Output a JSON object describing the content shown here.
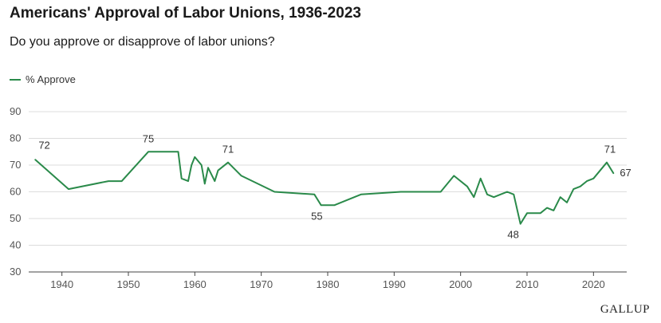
{
  "title": "Americans' Approval of Labor Unions, 1936-2023",
  "subtitle": "Do you approve or disapprove of labor unions?",
  "source": "GALLUP",
  "chart_data": {
    "type": "line",
    "xlim": [
      1935,
      2025
    ],
    "ylim": [
      30,
      90
    ],
    "xticks": [
      1940,
      1950,
      1960,
      1970,
      1980,
      1990,
      2000,
      2010,
      2020
    ],
    "yticks": [
      30,
      40,
      50,
      60,
      70,
      80,
      90
    ],
    "grid": true,
    "legend_placement": "top-left",
    "color": "#2a8a4a",
    "series": [
      {
        "name": "% Approve",
        "x": [
          1936,
          1941,
          1947,
          1949,
          1953,
          1957,
          1957.5,
          1958,
          1959,
          1959.5,
          1960,
          1961,
          1961.5,
          1962,
          1963,
          1963.5,
          1965,
          1967,
          1972,
          1978,
          1979,
          1981,
          1985,
          1991,
          1997,
          1999,
          2001,
          2002,
          2003,
          2004,
          2005,
          2006,
          2007,
          2008,
          2009,
          2010,
          2011,
          2012,
          2013,
          2014,
          2015,
          2016,
          2017,
          2018,
          2019,
          2020,
          2021,
          2022,
          2023
        ],
        "values": [
          72,
          61,
          64,
          64,
          75,
          75,
          75,
          65,
          64,
          70,
          73,
          70,
          63,
          69,
          64,
          68,
          71,
          66,
          60,
          59,
          55,
          55,
          59,
          60,
          60,
          66,
          62,
          58,
          65,
          59,
          58,
          59,
          60,
          59,
          48,
          52,
          52,
          52,
          54,
          53,
          58,
          56,
          61,
          62,
          64,
          65,
          68,
          71,
          67
        ]
      }
    ],
    "labels": [
      {
        "x": 1936,
        "y": 72,
        "text": "72"
      },
      {
        "x": 1953,
        "y": 75,
        "text": "75"
      },
      {
        "x": 1965,
        "y": 71,
        "text": "71"
      },
      {
        "x": 1981,
        "y": 55,
        "text": "55"
      },
      {
        "x": 2009,
        "y": 48,
        "text": "48"
      },
      {
        "x": 2022,
        "y": 71,
        "text": "71"
      },
      {
        "x": 2023,
        "y": 67,
        "text": "67"
      }
    ]
  }
}
